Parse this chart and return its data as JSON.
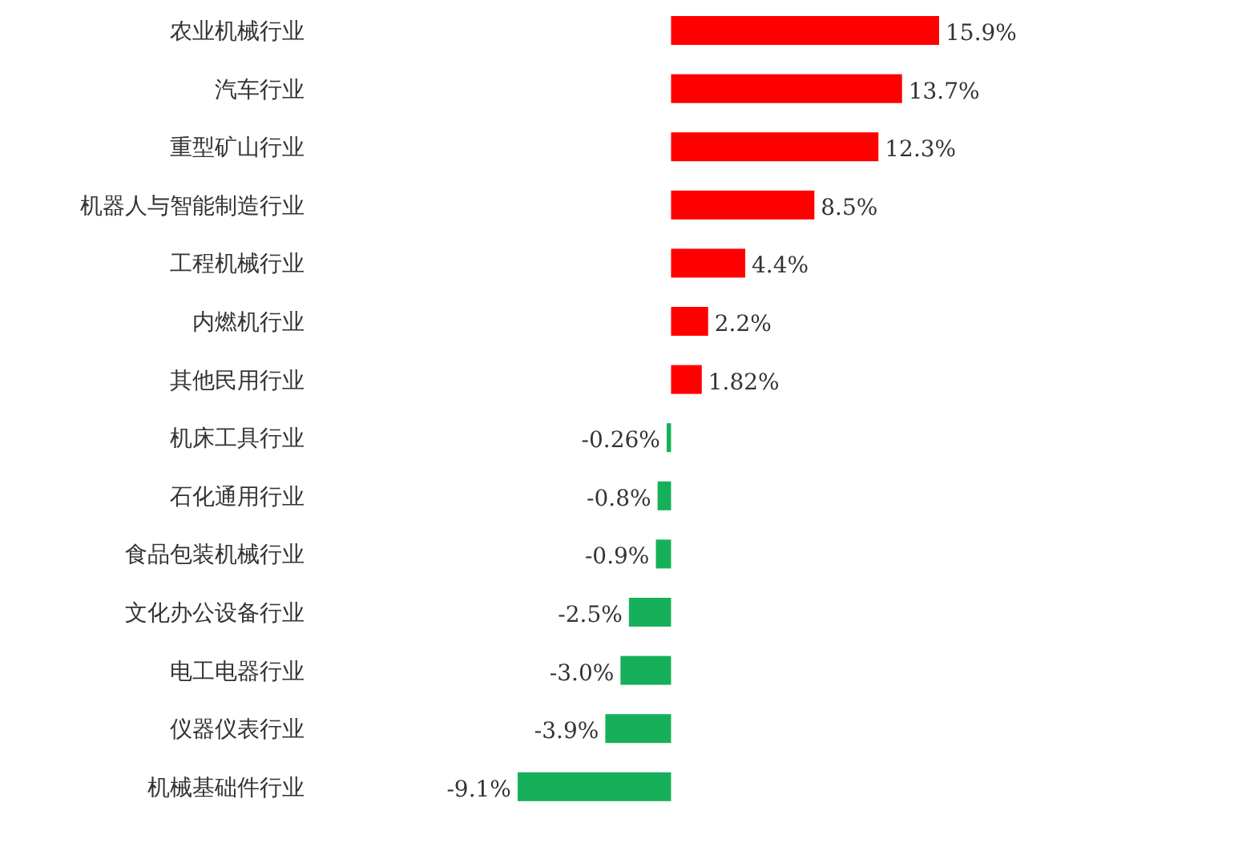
{
  "chart_data": {
    "type": "bar",
    "orientation": "horizontal",
    "categories": [
      "农业机械行业",
      "汽车行业",
      "重型矿山行业",
      "机器人与智能制造行业",
      "工程机械行业",
      "内燃机行业",
      "其他民用行业",
      "机床工具行业",
      "石化通用行业",
      "食品包装机械行业",
      "文化办公设备行业",
      "电工电器行业",
      "仪器仪表行业",
      "机械基础件行业"
    ],
    "values": [
      15.9,
      13.7,
      12.3,
      8.5,
      4.4,
      2.2,
      1.82,
      -0.26,
      -0.8,
      -0.9,
      -2.5,
      -3.0,
      -3.9,
      -9.1
    ],
    "value_labels": [
      "15.9%",
      "13.7%",
      "12.3%",
      "8.5%",
      "4.4%",
      "2.2%",
      "1.82%",
      "-0.26%",
      "-0.8%",
      "-0.9%",
      "-2.5%",
      "-3.0%",
      "-3.9%",
      "-9.1%"
    ],
    "colors": [
      "#ff0000",
      "#ff0000",
      "#ff0000",
      "#ff0000",
      "#ff0000",
      "#ff0000",
      "#ff0000",
      "#16b05a",
      "#16b05a",
      "#16b05a",
      "#16b05a",
      "#16b05a",
      "#16b05a",
      "#16b05a"
    ]
  }
}
